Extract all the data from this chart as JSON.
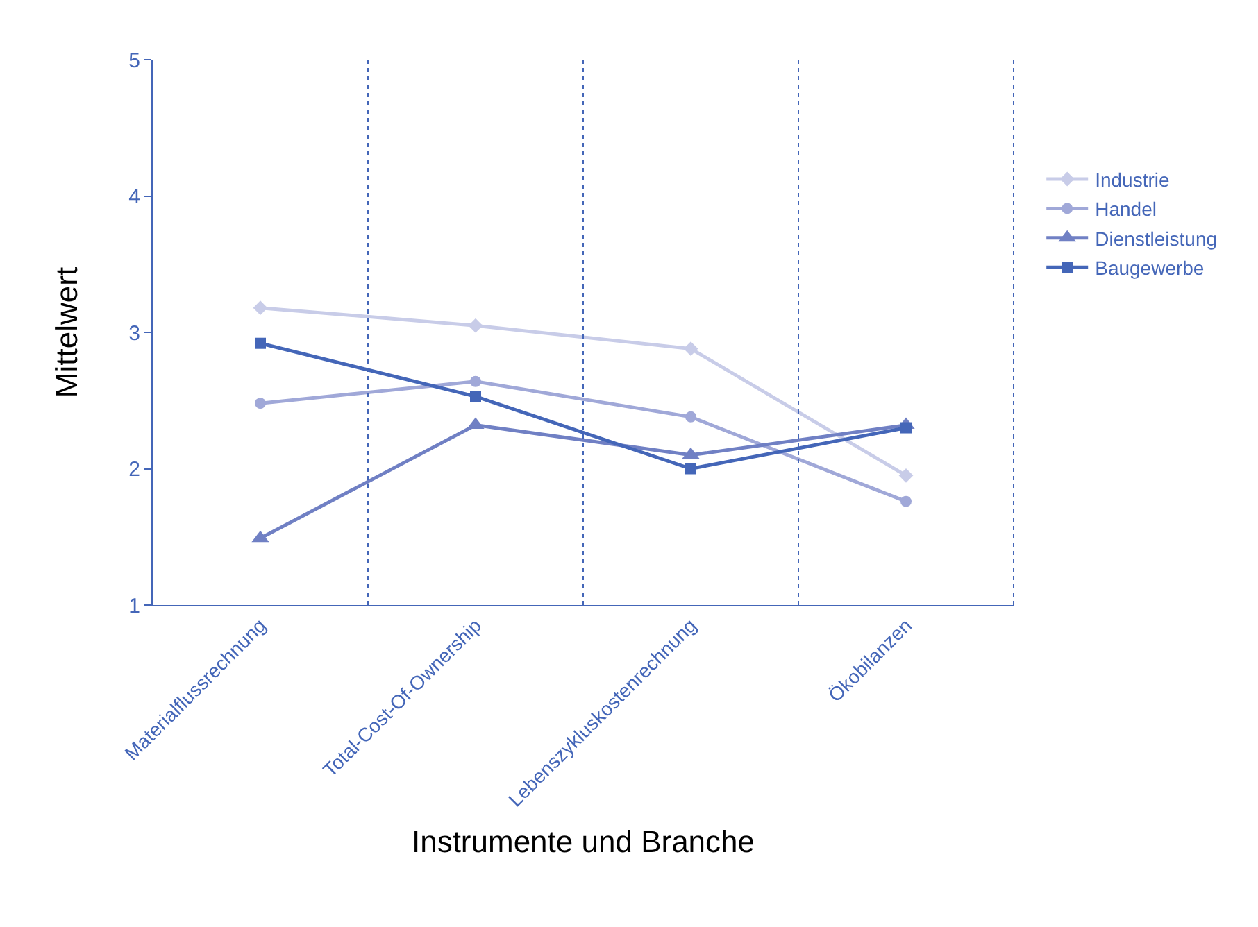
{
  "chart_data": {
    "type": "line",
    "xlabel": "Instrumente und Branche",
    "ylabel": "Mittelwert",
    "categories": [
      "Materialflussrechnung",
      "Total-Cost-Of-Ownership",
      "Lebenszykluskostenrechnung",
      "Ökobilanzen"
    ],
    "series": [
      {
        "name": "Industrie",
        "color": "#c8cce8",
        "marker": "diamond",
        "values": [
          3.18,
          3.05,
          2.88,
          1.95
        ]
      },
      {
        "name": "Handel",
        "color": "#a0a8d8",
        "marker": "circle",
        "values": [
          2.48,
          2.64,
          2.38,
          1.76
        ]
      },
      {
        "name": "Dienstleistung",
        "color": "#7080c4",
        "marker": "triangle",
        "values": [
          1.49,
          2.32,
          2.1,
          2.32
        ]
      },
      {
        "name": "Baugewerbe",
        "color": "#4466b8",
        "marker": "square",
        "values": [
          2.92,
          2.53,
          2.0,
          2.3
        ]
      }
    ],
    "ylim": [
      1,
      5
    ],
    "yticks": [
      1,
      2,
      3,
      4,
      5
    ],
    "grid": "x",
    "legend": "right",
    "line_style": "solid"
  }
}
